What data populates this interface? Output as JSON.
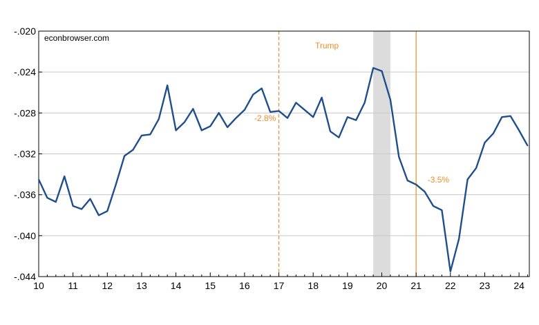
{
  "chart_data": {
    "type": "line",
    "title": "",
    "xlabel": "",
    "ylabel": "",
    "watermark": "econbrowser.com",
    "xlim": [
      10,
      24.3
    ],
    "ylim": [
      -0.044,
      -0.02
    ],
    "y_ticks": [
      -0.02,
      -0.024,
      -0.028,
      -0.032,
      -0.036,
      -0.04,
      -0.044
    ],
    "y_tick_labels": [
      "-.020",
      "-.024",
      "-.028",
      "-.032",
      "-.036",
      "-.040",
      "-.044"
    ],
    "x_ticks": [
      10,
      11,
      12,
      13,
      14,
      15,
      16,
      17,
      18,
      19,
      20,
      21,
      22,
      23,
      24
    ],
    "x_tick_labels": [
      "10",
      "11",
      "12",
      "13",
      "14",
      "15",
      "16",
      "17",
      "18",
      "19",
      "20",
      "21",
      "22",
      "23",
      "24"
    ],
    "grid": true,
    "line_color": "#1f4e8c",
    "annotation_color": "#f08c28",
    "recession_color": "#dcdcdc",
    "recession_band": [
      19.75,
      20.25
    ],
    "vertical_lines": [
      {
        "x": 17.0,
        "style": "dashed"
      },
      {
        "x": 21.0,
        "style": "solid"
      }
    ],
    "annotations": [
      {
        "text": "Trump",
        "x": 18.4,
        "y": -0.0217
      },
      {
        "text": "-2.8%",
        "x": 16.6,
        "y": -0.0288
      },
      {
        "text": "-3.5%",
        "x": 21.65,
        "y": -0.0348
      }
    ],
    "series": [
      {
        "x": [
          10.0,
          10.25,
          10.5,
          10.75,
          11.0,
          11.25,
          11.5,
          11.75,
          12.0,
          12.25,
          12.5,
          12.75,
          13.0,
          13.25,
          13.5,
          13.75,
          14.0,
          14.25,
          14.5,
          14.75,
          15.0,
          15.25,
          15.5,
          15.75,
          16.0,
          16.25,
          16.5,
          16.75,
          17.0,
          17.25,
          17.5,
          17.75,
          18.0,
          18.25,
          18.5,
          18.75,
          19.0,
          19.25,
          19.5,
          19.75,
          20.0,
          20.25,
          20.5,
          20.75,
          21.0,
          21.25,
          21.5,
          21.75,
          22.0,
          22.25,
          22.5,
          22.75,
          23.0,
          23.25,
          23.5,
          23.75,
          24.0,
          24.25
        ],
        "values": [
          -0.0345,
          -0.0363,
          -0.0367,
          -0.0342,
          -0.0371,
          -0.0374,
          -0.0364,
          -0.038,
          -0.0376,
          -0.035,
          -0.0322,
          -0.0316,
          -0.0302,
          -0.0301,
          -0.0286,
          -0.0253,
          -0.0297,
          -0.0289,
          -0.0276,
          -0.0297,
          -0.0293,
          -0.028,
          -0.0294,
          -0.0285,
          -0.0277,
          -0.0262,
          -0.0256,
          -0.0279,
          -0.0278,
          -0.0285,
          -0.027,
          -0.0277,
          -0.0284,
          -0.0265,
          -0.0298,
          -0.0304,
          -0.0284,
          -0.0287,
          -0.027,
          -0.0236,
          -0.0239,
          -0.0267,
          -0.0323,
          -0.0346,
          -0.035,
          -0.0357,
          -0.0371,
          -0.0375,
          -0.0435,
          -0.0403,
          -0.0345,
          -0.0334,
          -0.0309,
          -0.03,
          -0.0284,
          -0.0283,
          -0.0297,
          -0.0312
        ]
      }
    ]
  }
}
